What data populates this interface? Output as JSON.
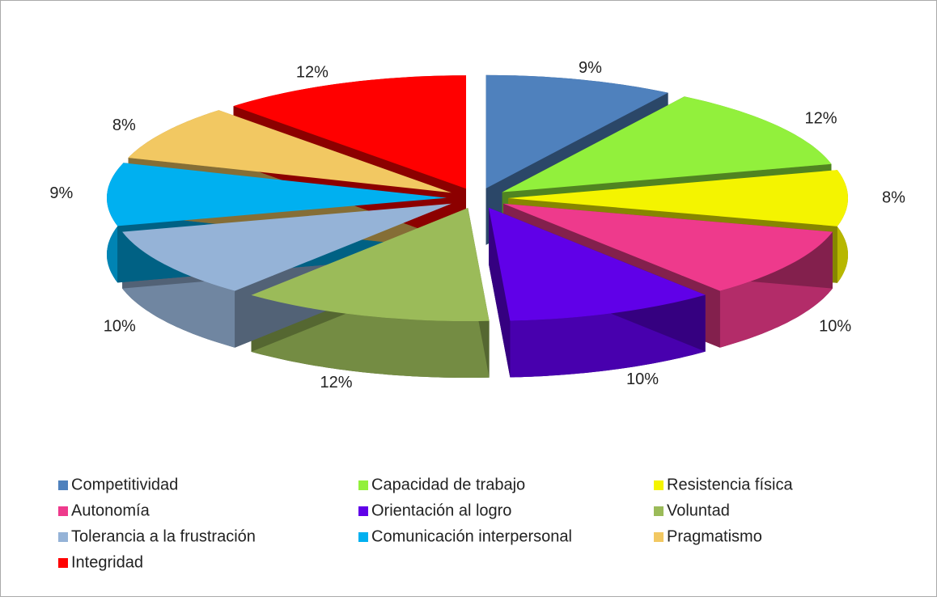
{
  "chart_data": {
    "type": "pie",
    "categories": [
      "Competitividad",
      "Capacidad de trabajo",
      "Resistencia física",
      "Autonomía",
      "Orientación al logro",
      "Voluntad",
      "Tolerancia a la frustración",
      "Comunicación interpersonal",
      "Pragmatismo",
      "Integridad"
    ],
    "values": [
      9,
      12,
      8,
      10,
      10,
      12,
      10,
      9,
      8,
      12
    ],
    "value_labels": [
      "9%",
      "12%",
      "8%",
      "10%",
      "10%",
      "12%",
      "10%",
      "9%",
      "8%",
      "12%"
    ],
    "colors": [
      "#4f81bd",
      "#92f03c",
      "#f4f400",
      "#ee3a8c",
      "#6000e8",
      "#9bbb59",
      "#95b3d7",
      "#00b0f0",
      "#f2c862",
      "#ff0000"
    ],
    "legend": "bottom"
  }
}
